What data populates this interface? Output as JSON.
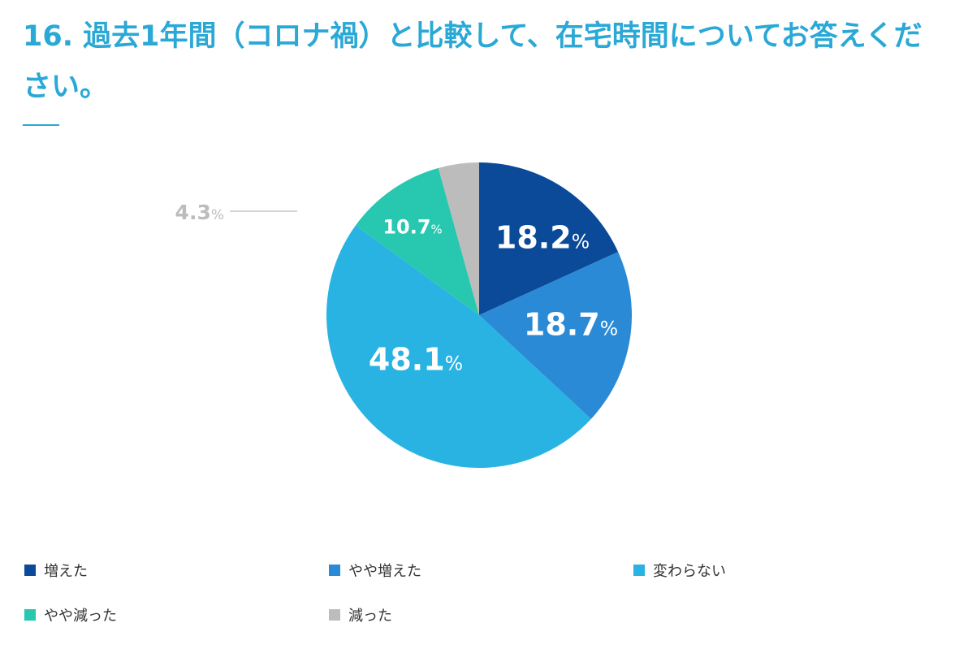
{
  "chart_data": {
    "type": "pie",
    "title": "16. 過去1年間（コロナ禍）と比較して、在宅時間についてお答えください。",
    "slices": [
      {
        "label": "増えた",
        "value": 18.2,
        "color": "#0b4a98"
      },
      {
        "label": "やや増えた",
        "value": 18.7,
        "color": "#2a8ad6"
      },
      {
        "label": "変わらない",
        "value": 48.1,
        "color": "#29b3e3"
      },
      {
        "label": "やや減った",
        "value": 10.7,
        "color": "#27c7b0"
      },
      {
        "label": "減った",
        "value": 4.3,
        "color": "#bcbcbc"
      }
    ],
    "data_labels": [
      "18.2",
      "18.7",
      "48.1",
      "10.7",
      "4.3"
    ],
    "unit": "%",
    "start": "top",
    "direction": "clockwise",
    "legend_placement": "bottom"
  },
  "colors": {
    "title": "#2aa8d6",
    "outside_label": "#bcbcbc"
  }
}
